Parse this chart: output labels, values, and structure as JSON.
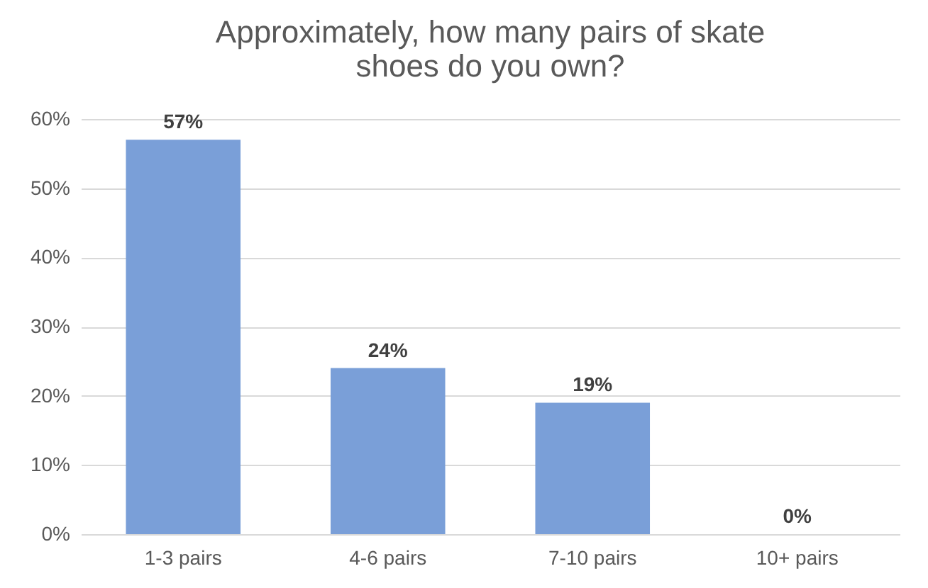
{
  "chart_data": {
    "type": "bar",
    "title": "Approximately, how many pairs of skate shoes do you own?",
    "categories": [
      "1-3 pairs",
      "4-6 pairs",
      "7-10 pairs",
      "10+ pairs"
    ],
    "values": [
      57,
      24,
      19,
      0
    ],
    "value_labels": [
      "57%",
      "24%",
      "19%",
      "0%"
    ],
    "color": "#7a9fd8",
    "ylim": [
      0,
      60
    ],
    "yticks": [
      {
        "value": 0,
        "label": "0%"
      },
      {
        "value": 10,
        "label": "10%"
      },
      {
        "value": 20,
        "label": "20%"
      },
      {
        "value": 30,
        "label": "30%"
      },
      {
        "value": 40,
        "label": "40%"
      },
      {
        "value": 50,
        "label": "50%"
      },
      {
        "value": 60,
        "label": "60%"
      }
    ],
    "grid": "y"
  }
}
